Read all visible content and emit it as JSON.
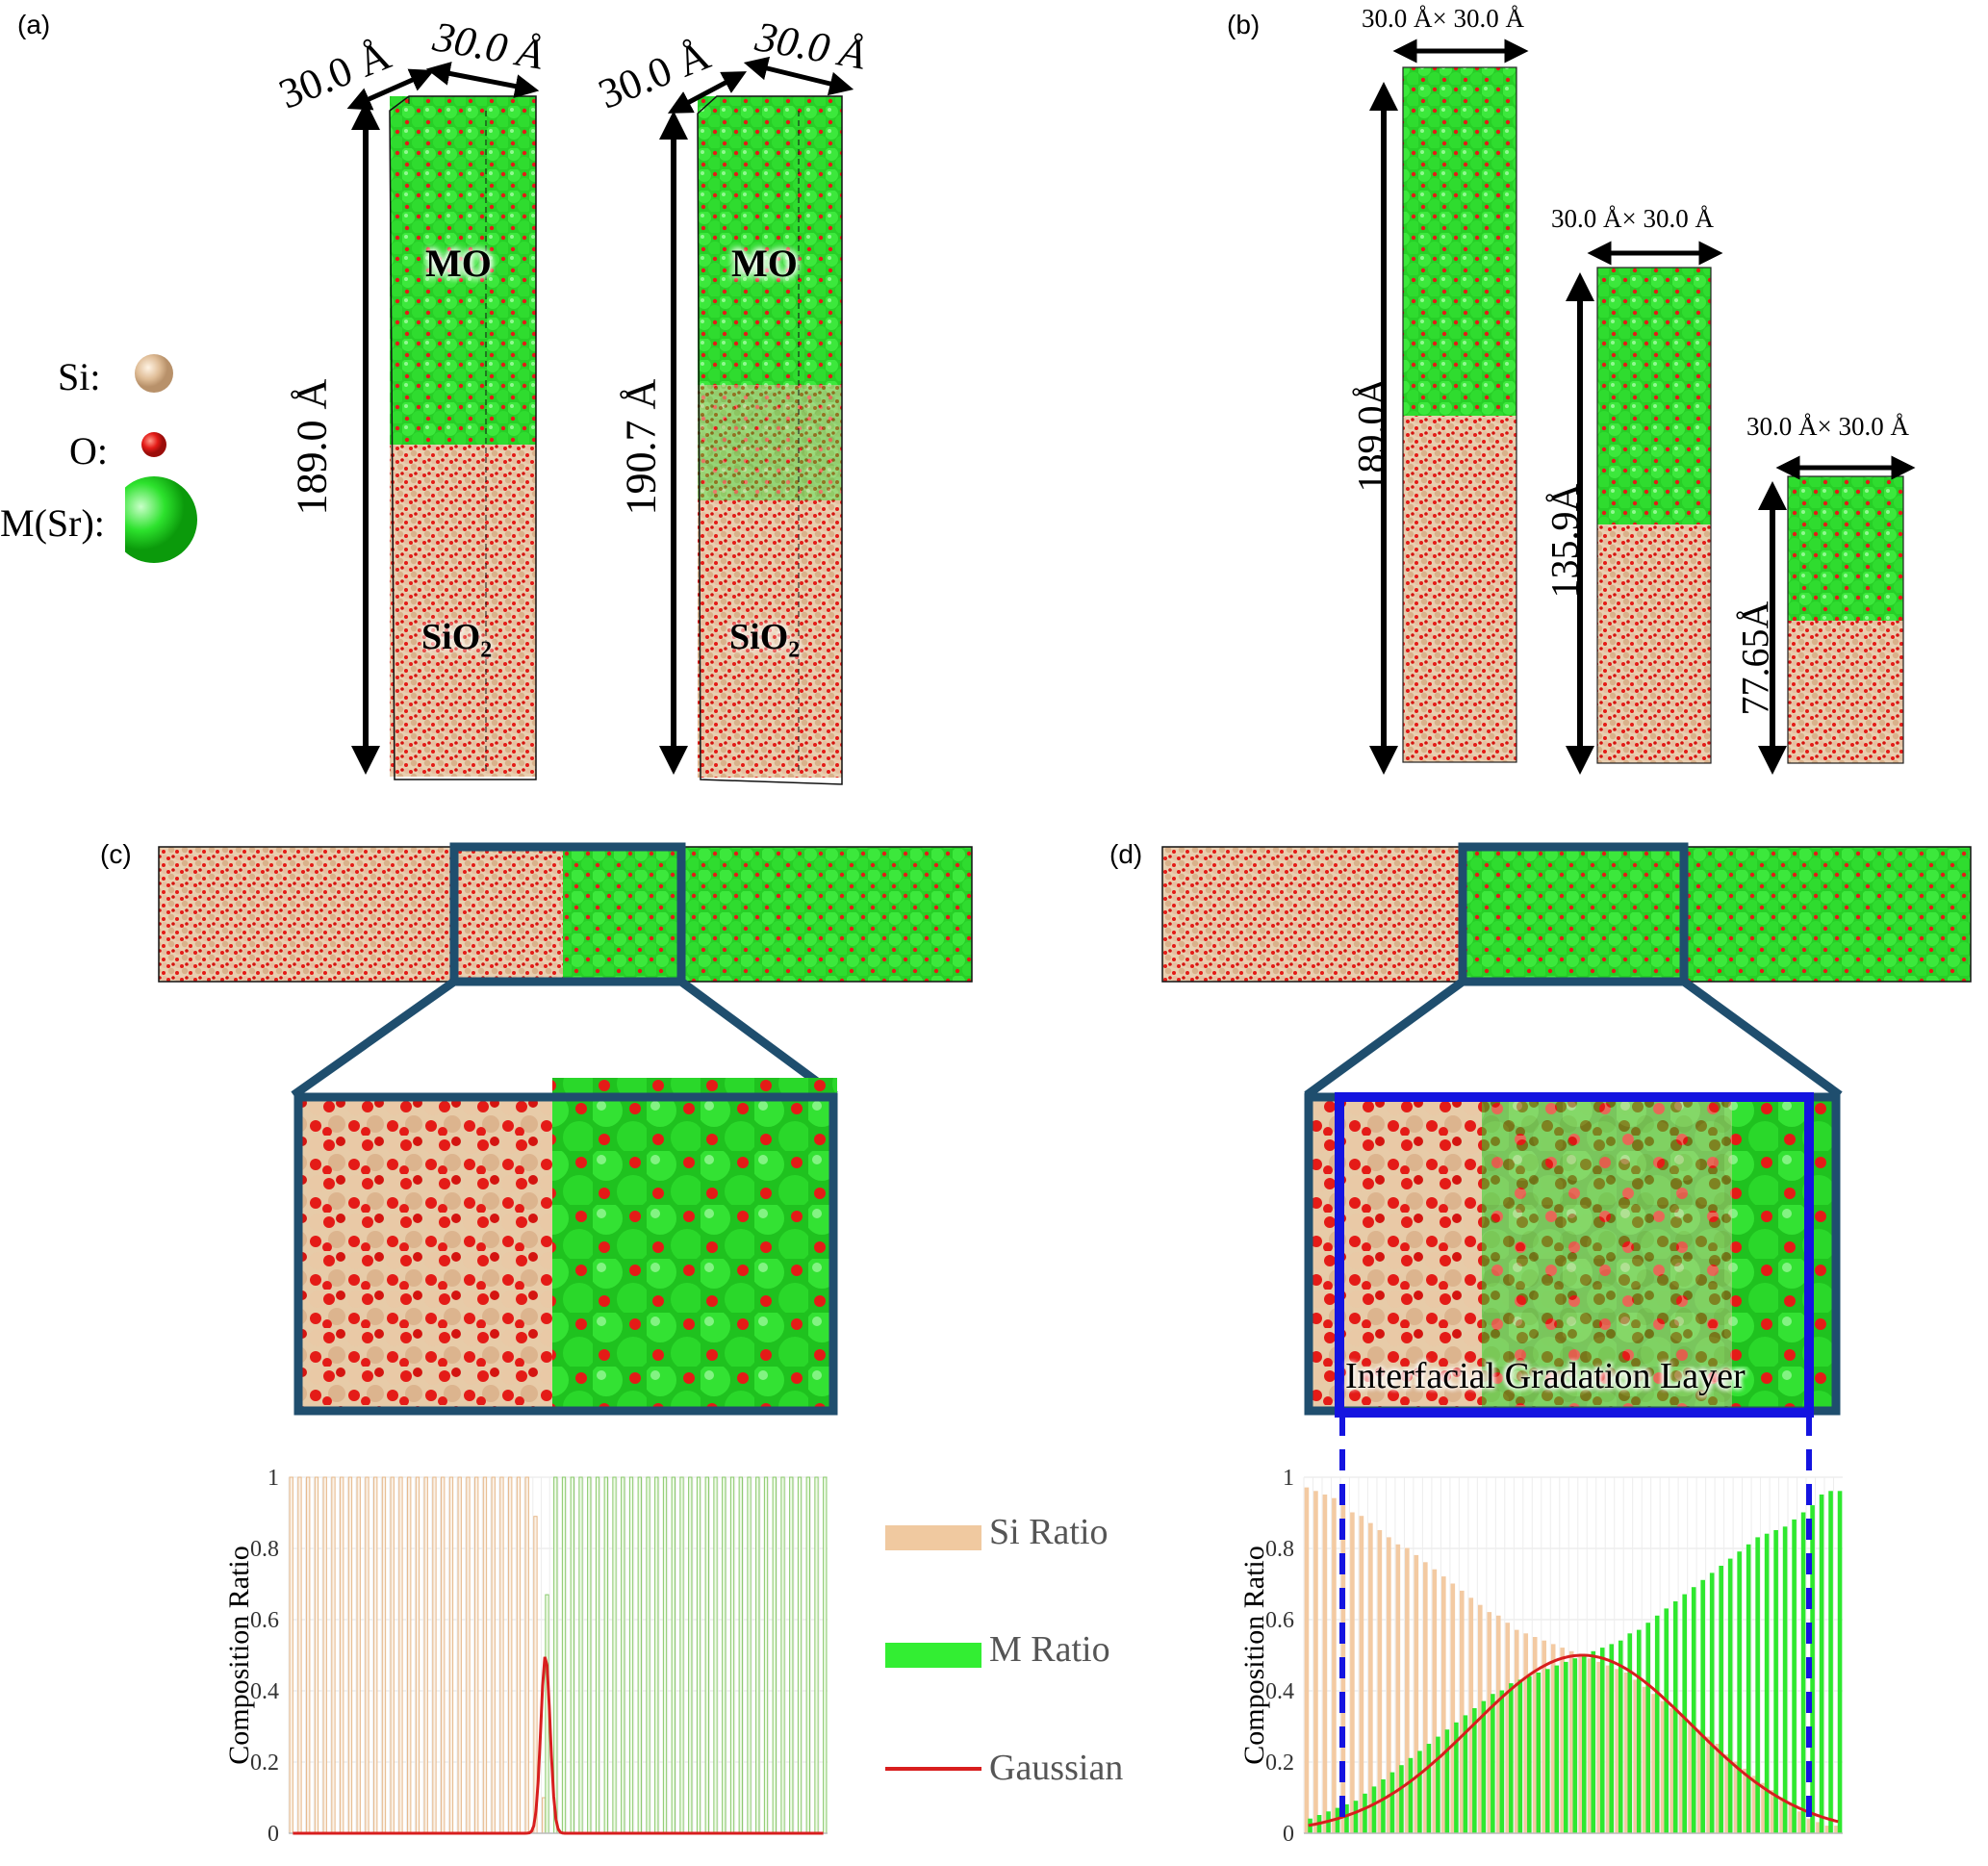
{
  "panels": {
    "a": {
      "label": "(a)",
      "legend": {
        "si": "Si:",
        "o": "O:",
        "m": "M(Sr):"
      },
      "cell1": {
        "width_label": "30.0 Å",
        "depth_label": "30.0 Å",
        "height_label": "189.0 Å",
        "top_label": "MO",
        "bottom_label": "SiO",
        "subscript": "2"
      },
      "cell2": {
        "width_label": "30.0 Å",
        "depth_label": "30.0 Å",
        "height_label": "190.7 Å",
        "top_label": "MO",
        "bottom_label": "SiO",
        "subscript": "2"
      }
    },
    "b": {
      "label": "(b)",
      "cells": [
        {
          "size_label": "30.0 Å× 30.0 Å",
          "height_label": "189.0Å"
        },
        {
          "size_label": "30.0 Å× 30.0 Å",
          "height_label": "135.9Å"
        },
        {
          "size_label": "30.0 Å× 30.0 Å",
          "height_label": "77.65Å"
        }
      ]
    },
    "c": {
      "label": "(c)"
    },
    "d": {
      "label": "(d)",
      "zoom_caption": "Interfacial Gradation Layer"
    }
  },
  "legend": {
    "si_ratio": "Si Ratio",
    "m_ratio": "M Ratio",
    "gaussian": "Gaussian"
  },
  "colors": {
    "si": "#e8c7a3",
    "o": "#e41b17",
    "m": "#22dd22",
    "m_bar": "#33ee33",
    "si_bar": "#f0c9a0",
    "gaussian": "#d81e1e",
    "zoom_box": "#1f4e6e",
    "gradation_box": "#1414e0"
  },
  "chart_data": [
    {
      "type": "bar",
      "panel": "c",
      "title": "",
      "xlabel": "",
      "ylabel": "Composition Ratio",
      "ylim": [
        0,
        1
      ],
      "yticks": [
        "0",
        "0.2",
        "0.4",
        "0.6",
        "0.8",
        "1"
      ],
      "series": [
        {
          "name": "Si Ratio",
          "values": [
            1,
            1,
            1,
            1,
            1,
            1,
            1,
            1,
            1,
            1,
            1,
            1,
            1,
            1,
            1,
            1,
            1,
            1,
            1,
            1,
            1,
            1,
            1,
            1,
            1,
            1,
            1,
            1,
            1,
            0.89,
            0.1,
            0,
            0,
            0,
            0,
            0,
            0,
            0,
            0,
            0,
            0,
            0,
            0,
            0,
            0,
            0,
            0,
            0,
            0,
            0,
            0,
            0,
            0,
            0,
            0,
            0,
            0,
            0,
            0,
            0,
            0,
            0,
            0,
            0
          ]
        },
        {
          "name": "M Ratio",
          "values": [
            0,
            0,
            0,
            0,
            0,
            0,
            0,
            0,
            0,
            0,
            0,
            0,
            0,
            0,
            0,
            0,
            0,
            0,
            0,
            0,
            0,
            0,
            0,
            0,
            0,
            0,
            0,
            0,
            0,
            0,
            0.67,
            1,
            1,
            1,
            1,
            1,
            1,
            1,
            1,
            1,
            1,
            1,
            1,
            1,
            1,
            1,
            1,
            1,
            1,
            1,
            1,
            1,
            1,
            1,
            1,
            1,
            1,
            1,
            1,
            1,
            1,
            1,
            1,
            1
          ]
        },
        {
          "name": "Gaussian",
          "type": "line",
          "peak": 0.5,
          "peak_index": 30,
          "width": 0.55
        }
      ]
    },
    {
      "type": "bar",
      "panel": "d",
      "title": "",
      "xlabel": "",
      "ylabel": "Composition Ratio",
      "ylim": [
        0,
        1
      ],
      "yticks": [
        "0",
        "0.2",
        "0.4",
        "0.6",
        "0.8",
        "1"
      ],
      "series": [
        {
          "name": "Si Ratio",
          "values": [
            0.97,
            0.96,
            0.95,
            0.94,
            0.92,
            0.9,
            0.89,
            0.87,
            0.85,
            0.83,
            0.81,
            0.8,
            0.78,
            0.76,
            0.74,
            0.72,
            0.7,
            0.68,
            0.66,
            0.64,
            0.62,
            0.61,
            0.59,
            0.57,
            0.56,
            0.55,
            0.54,
            0.53,
            0.52,
            0.51,
            0.5,
            0.49,
            0.48,
            0.47,
            0.46,
            0.45,
            0.43,
            0.41,
            0.39,
            0.37,
            0.35,
            0.33,
            0.31,
            0.29,
            0.27,
            0.25,
            0.22,
            0.2,
            0.18,
            0.16,
            0.14,
            0.12,
            0.1,
            0.08,
            0.06,
            0.04,
            0.03,
            0.02,
            0.02
          ]
        },
        {
          "name": "M Ratio",
          "values": [
            0.04,
            0.05,
            0.06,
            0.07,
            0.08,
            0.09,
            0.11,
            0.13,
            0.15,
            0.17,
            0.19,
            0.21,
            0.23,
            0.25,
            0.27,
            0.29,
            0.31,
            0.33,
            0.35,
            0.37,
            0.39,
            0.4,
            0.42,
            0.43,
            0.44,
            0.45,
            0.46,
            0.47,
            0.48,
            0.49,
            0.5,
            0.51,
            0.52,
            0.53,
            0.54,
            0.56,
            0.57,
            0.59,
            0.61,
            0.63,
            0.65,
            0.67,
            0.69,
            0.71,
            0.73,
            0.75,
            0.77,
            0.79,
            0.81,
            0.83,
            0.84,
            0.85,
            0.86,
            0.88,
            0.9,
            0.92,
            0.95,
            0.96,
            0.96
          ]
        },
        {
          "name": "Gaussian",
          "type": "line",
          "peak": 0.5,
          "peak_index": 30,
          "width": 12
        }
      ]
    }
  ]
}
